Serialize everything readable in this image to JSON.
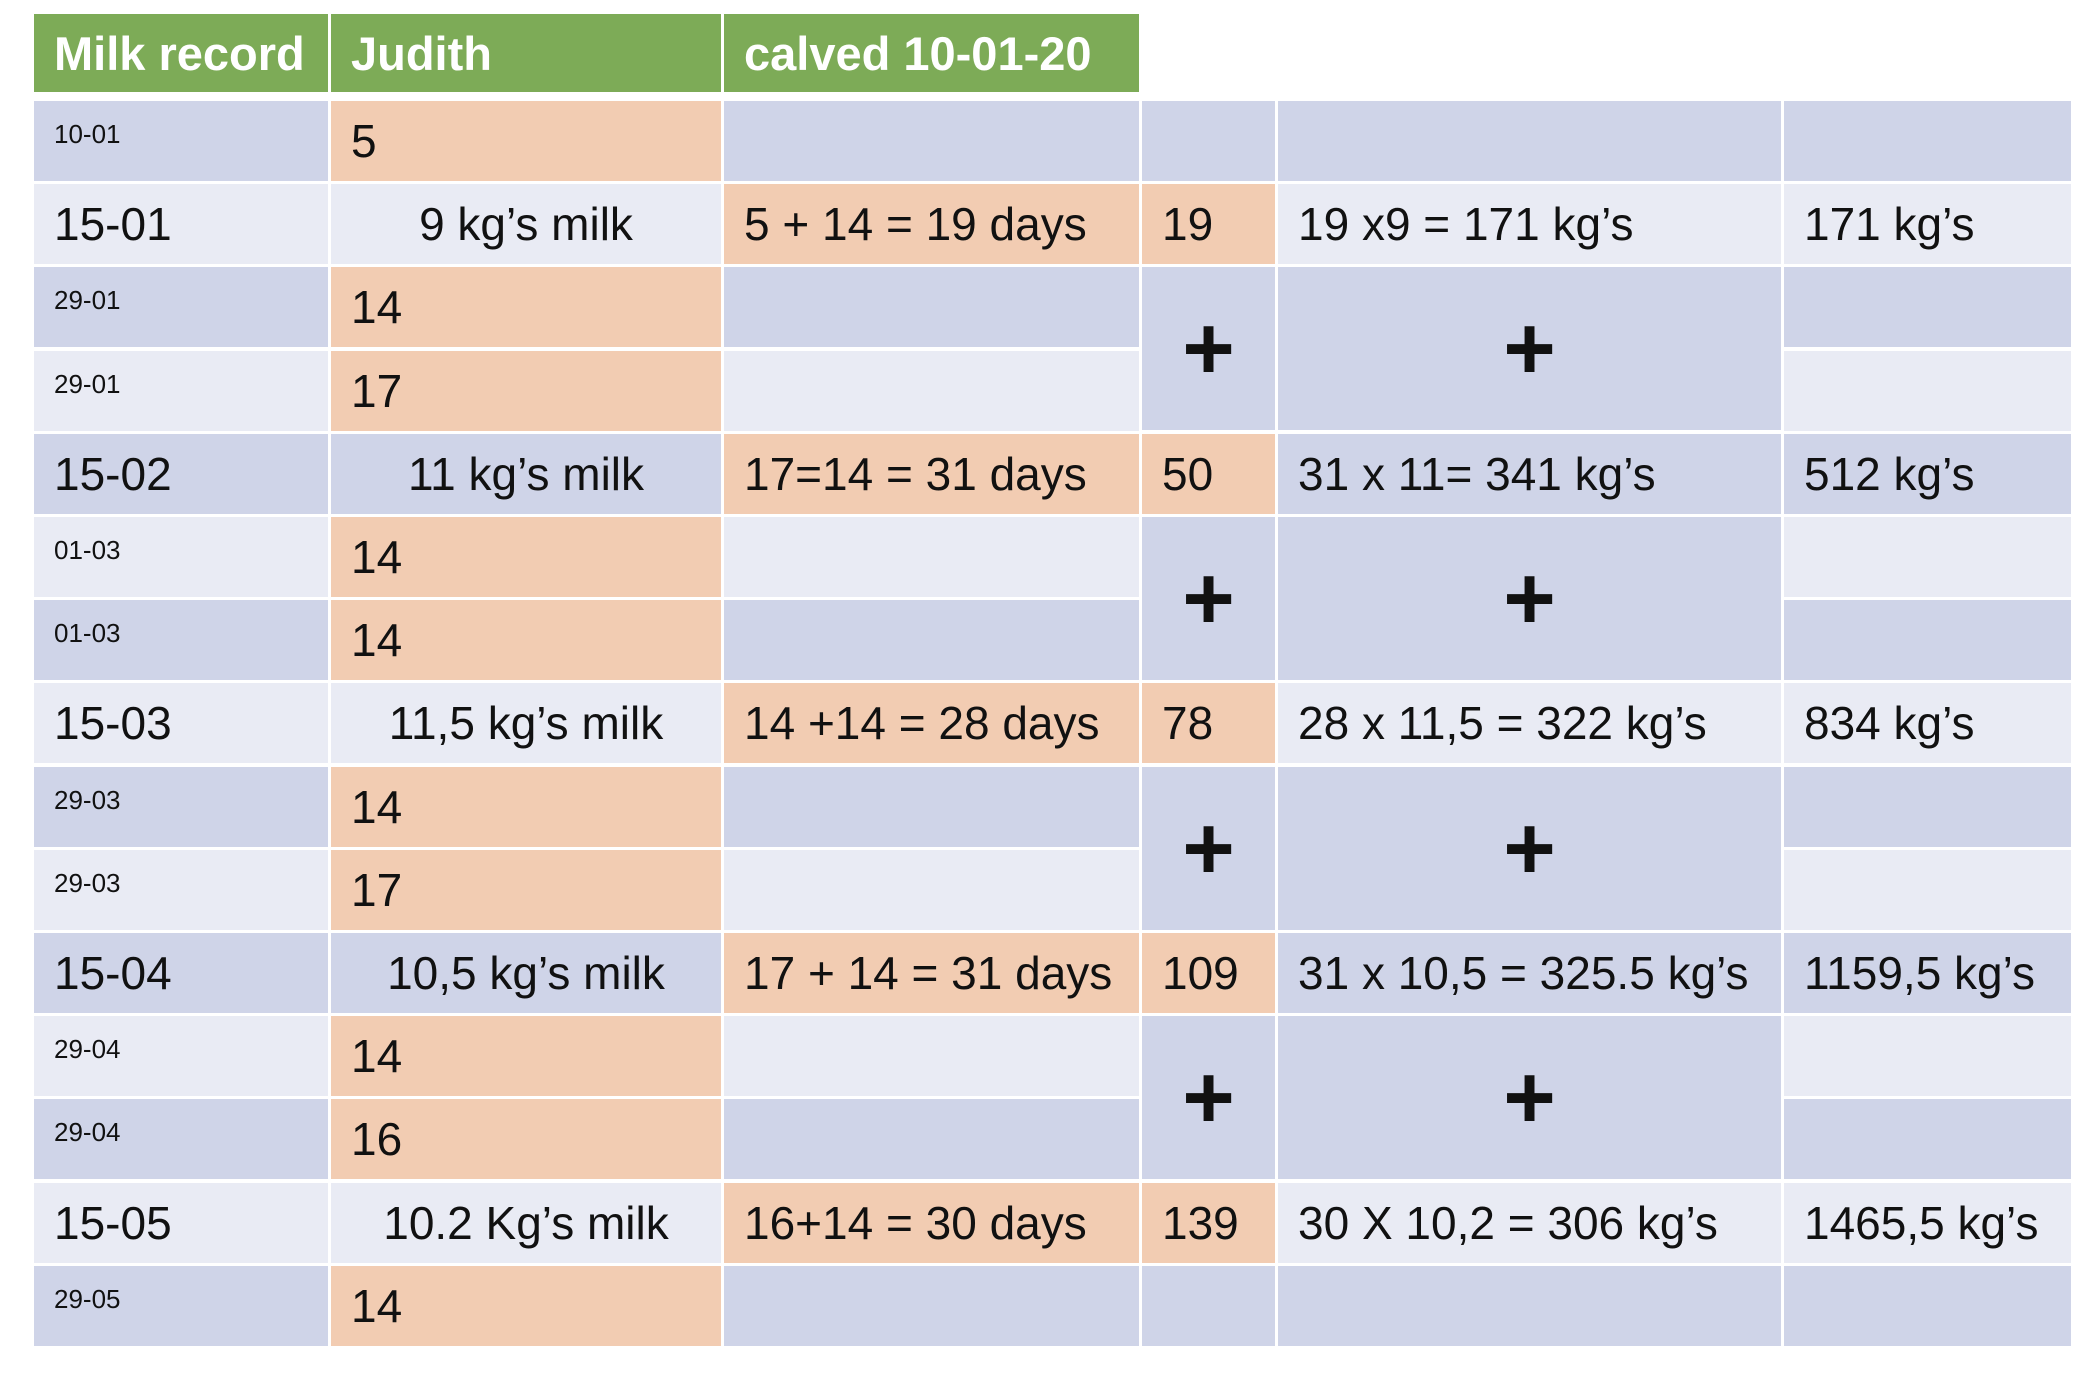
{
  "header": {
    "title": "Milk record",
    "cow": "Judith",
    "calved": "calved 10-01-20"
  },
  "rows": [
    {
      "date": "10-01",
      "value": "5"
    },
    {
      "date": "15-01",
      "value": "9 kg’s milk",
      "calc": "5 + 14 = 19 days",
      "days": "19",
      "product": "19 x9 = 171 kg’s",
      "total": "171 kg’s"
    },
    {
      "date": "29-01",
      "value": "14"
    },
    {
      "date": "29-01",
      "value": "17"
    },
    {
      "date": "15-02",
      "value": "11 kg’s milk",
      "calc": "17=14 = 31 days",
      "days": "50",
      "product": "31 x 11= 341 kg’s",
      "total": "512 kg’s"
    },
    {
      "date": "01-03",
      "value": "14"
    },
    {
      "date": "01-03",
      "value": "14"
    },
    {
      "date": "15-03",
      "value": "11,5 kg’s milk",
      "calc": "14 +14 = 28 days",
      "days": "78",
      "product": "28 x 11,5 = 322 kg’s",
      "total": "834 kg’s"
    },
    {
      "date": "29-03",
      "value": "14"
    },
    {
      "date": "29-03",
      "value": "17"
    },
    {
      "date": "15-04",
      "value": "10,5 kg’s milk",
      "calc": "17 + 14 = 31 days",
      "days": "109",
      "product": "31 x 10,5 = 325.5 kg’s",
      "total": "1159,5 kg’s"
    },
    {
      "date": "29-04",
      "value": "14"
    },
    {
      "date": "29-04",
      "value": "16"
    },
    {
      "date": "15-05",
      "value": "10.2 Kg’s milk",
      "calc": "16+14 = 30 days",
      "days": "139",
      "product": "30 X 10,2 = 306 kg’s",
      "total": "1465,5 kg’s"
    },
    {
      "date": "29-05",
      "value": "14"
    }
  ],
  "plus_sign": "+",
  "colors": {
    "header": "#7dab57",
    "peach": "#f2ccb2",
    "blue": "#cfd4e8",
    "light": "#e9ebf4"
  }
}
